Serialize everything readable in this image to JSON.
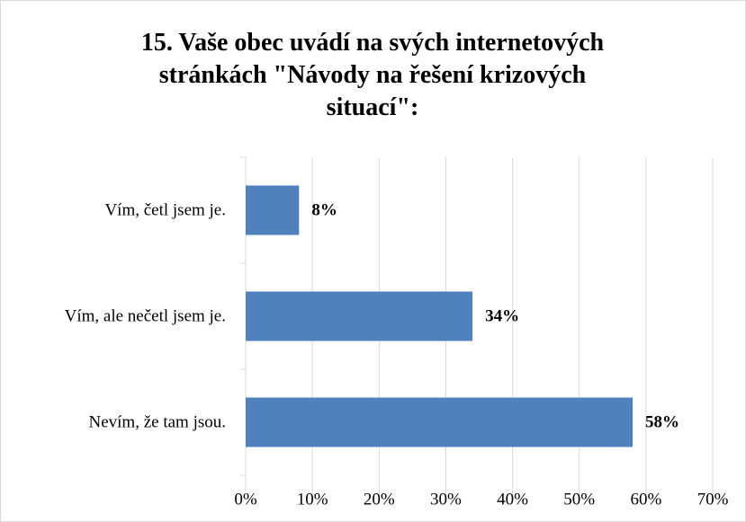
{
  "chart_data": {
    "type": "bar",
    "orientation": "horizontal",
    "title": "15. Vaše obec uvádí na svých internetových stránkách \"Návody na řešení krizových situací\":",
    "categories": [
      "Vím, četl jsem je.",
      "Vím, ale nečetl jsem je.",
      "Nevím, že tam jsou."
    ],
    "values": [
      8,
      34,
      58
    ],
    "value_labels": [
      "8%",
      "34%",
      "58%"
    ],
    "color": "#4f81bd",
    "xlim": [
      0,
      70
    ],
    "xticks": [
      {
        "value": 0,
        "label": "0%"
      },
      {
        "value": 10,
        "label": "10%"
      },
      {
        "value": 20,
        "label": "20%"
      },
      {
        "value": 30,
        "label": "30%"
      },
      {
        "value": 40,
        "label": "40%"
      },
      {
        "value": 50,
        "label": "50%"
      },
      {
        "value": 60,
        "label": "60%"
      },
      {
        "value": 70,
        "label": "70%"
      }
    ],
    "grid": true
  }
}
